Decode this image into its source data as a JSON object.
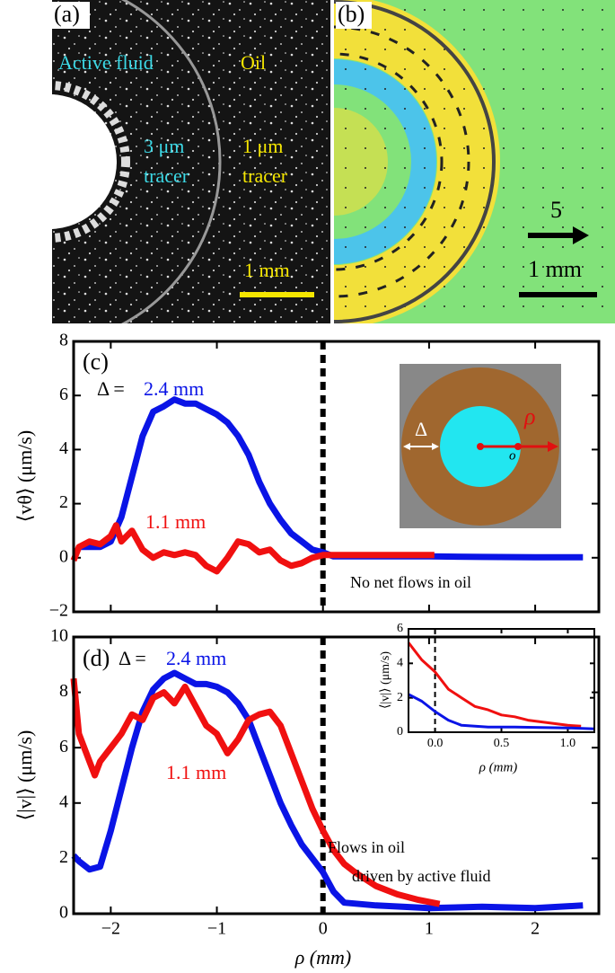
{
  "images": {
    "a": {
      "panel_label": "(a)",
      "left_label": "Active fluid",
      "right_label": "Oil",
      "left_tracer": [
        "3 μm",
        "tracer"
      ],
      "right_tracer": [
        "1 μm",
        "tracer"
      ],
      "scale": "1 mm"
    },
    "b": {
      "panel_label": "(b)",
      "arrow_scale": "5",
      "scale": "1 mm"
    }
  },
  "chart_data": [
    {
      "type": "line",
      "panel_label": "(c)",
      "ylabel": "⟨vθ⟩ (μm/s)",
      "series_prefix": "Δ = ",
      "note": "No net flows in oil",
      "xlim": [
        -2.35,
        2.6
      ],
      "ylim": [
        -2,
        8
      ],
      "yticks": [
        {
          "value": -2,
          "label": "−2"
        },
        0,
        2,
        4,
        6,
        8
      ],
      "diagram": {
        "delta": "Δ",
        "rho": "ρ",
        "origin": "o"
      },
      "series": [
        {
          "name": "2.4 mm",
          "color": "#0a14e6",
          "x": [
            -2.3,
            -2.1,
            -2.0,
            -1.9,
            -1.8,
            -1.7,
            -1.6,
            -1.5,
            -1.4,
            -1.3,
            -1.2,
            -1.1,
            -1.0,
            -0.9,
            -0.8,
            -0.7,
            -0.6,
            -0.5,
            -0.4,
            -0.3,
            -0.2,
            -0.1,
            0,
            0.1,
            0.5,
            1.0,
            1.5,
            2.0,
            2.45
          ],
          "values": [
            0.4,
            0.4,
            0.6,
            1.5,
            3,
            4.5,
            5.4,
            5.6,
            5.85,
            5.7,
            5.7,
            5.5,
            5.3,
            5.0,
            4.5,
            3.8,
            2.8,
            2.0,
            1.4,
            0.9,
            0.6,
            0.3,
            0.2,
            0.05,
            0.05,
            0.05,
            0.03,
            0.02,
            0.02
          ]
        },
        {
          "name": "1.1 mm",
          "color": "#f01010",
          "x": [
            -2.35,
            -2.3,
            -2.2,
            -2.1,
            -2.0,
            -1.95,
            -1.9,
            -1.8,
            -1.7,
            -1.6,
            -1.5,
            -1.4,
            -1.3,
            -1.2,
            -1.1,
            -1.0,
            -0.9,
            -0.8,
            -0.7,
            -0.6,
            -0.5,
            -0.4,
            -0.3,
            -0.2,
            -0.1,
            0,
            0.2,
            0.5,
            1.0,
            1.05
          ],
          "values": [
            -0.1,
            0.4,
            0.6,
            0.5,
            0.8,
            1.2,
            0.6,
            1.0,
            0.3,
            0,
            0.2,
            0.1,
            0.2,
            0.1,
            -0.3,
            -0.5,
            0,
            0.6,
            0.5,
            0.2,
            0.3,
            -0.1,
            -0.3,
            -0.2,
            0,
            0.1,
            0.1,
            0.1,
            0.1,
            0.1
          ]
        }
      ]
    },
    {
      "type": "line",
      "panel_label": "(d)",
      "ylabel": "⟨|v|⟩ (μm/s)",
      "xlabel": "ρ (mm)",
      "series_prefix": "Δ = ",
      "note": [
        "Flows in oil",
        "driven by active fluid"
      ],
      "xlim": [
        -2.35,
        2.6
      ],
      "ylim": [
        0,
        10
      ],
      "xticks": [
        {
          "value": -2,
          "label": "−2"
        },
        {
          "value": -1,
          "label": "−1"
        },
        0,
        1,
        2
      ],
      "yticks": [
        0,
        2,
        4,
        6,
        8,
        10
      ],
      "series": [
        {
          "name": "2.4 mm",
          "color": "#0a14e6",
          "x": [
            -2.35,
            -2.3,
            -2.2,
            -2.1,
            -2.0,
            -1.9,
            -1.8,
            -1.7,
            -1.6,
            -1.5,
            -1.4,
            -1.3,
            -1.2,
            -1.1,
            -1.0,
            -0.9,
            -0.8,
            -0.7,
            -0.6,
            -0.5,
            -0.4,
            -0.3,
            -0.2,
            -0.1,
            0,
            0.1,
            0.2,
            0.5,
            1.0,
            1.5,
            2.0,
            2.45
          ],
          "values": [
            2.1,
            1.9,
            1.6,
            1.7,
            3,
            4.5,
            6,
            7.3,
            8.1,
            8.5,
            8.7,
            8.5,
            8.3,
            8.3,
            8.2,
            8.0,
            7.6,
            7.0,
            6.0,
            5.0,
            4.0,
            3.2,
            2.5,
            2.0,
            1.5,
            0.8,
            0.4,
            0.3,
            0.2,
            0.25,
            0.2,
            0.3
          ]
        },
        {
          "name": "1.1 mm",
          "color": "#f01010",
          "x": [
            -2.35,
            -2.3,
            -2.2,
            -2.15,
            -2.1,
            -2.0,
            -1.9,
            -1.8,
            -1.7,
            -1.6,
            -1.5,
            -1.4,
            -1.3,
            -1.2,
            -1.1,
            -1.0,
            -0.9,
            -0.8,
            -0.7,
            -0.6,
            -0.5,
            -0.4,
            -0.3,
            -0.2,
            -0.1,
            0,
            0.1,
            0.2,
            0.3,
            0.5,
            0.7,
            0.9,
            1.1
          ],
          "values": [
            8.5,
            6.5,
            5.5,
            5.0,
            5.5,
            6.0,
            6.5,
            7.2,
            7.0,
            7.8,
            8.0,
            7.6,
            8.2,
            7.5,
            6.8,
            6.5,
            5.8,
            6.3,
            7.0,
            7.2,
            7.3,
            6.8,
            5.8,
            4.8,
            3.8,
            3.0,
            2.3,
            1.8,
            1.5,
            1.0,
            0.7,
            0.5,
            0.35
          ]
        }
      ]
    },
    {
      "type": "line",
      "ylabel": "⟨|v|⟩ (μm/s)",
      "xlabel": "ρ (mm)",
      "xlim": [
        -0.2,
        1.2
      ],
      "ylim": [
        0,
        6
      ],
      "xticks": [
        {
          "value": 0,
          "label": "0.0"
        },
        0.5,
        {
          "value": 1,
          "label": "1.0"
        }
      ],
      "yticks": [
        0,
        2,
        4,
        6
      ],
      "series": [
        {
          "name": "1.1 mm",
          "color": "#f01010",
          "x": [
            -0.2,
            -0.1,
            0,
            0.1,
            0.2,
            0.3,
            0.4,
            0.5,
            0.6,
            0.7,
            0.8,
            0.9,
            1.0,
            1.1
          ],
          "values": [
            5.2,
            4.2,
            3.5,
            2.5,
            2.0,
            1.5,
            1.3,
            1.0,
            0.9,
            0.7,
            0.6,
            0.5,
            0.4,
            0.35
          ]
        },
        {
          "name": "2.4 mm",
          "color": "#0a14e6",
          "x": [
            -0.2,
            -0.1,
            0,
            0.1,
            0.2,
            0.4,
            0.6,
            1.0,
            1.2
          ],
          "values": [
            2.2,
            1.8,
            1.2,
            0.7,
            0.4,
            0.3,
            0.3,
            0.25,
            0.2
          ]
        }
      ]
    }
  ]
}
